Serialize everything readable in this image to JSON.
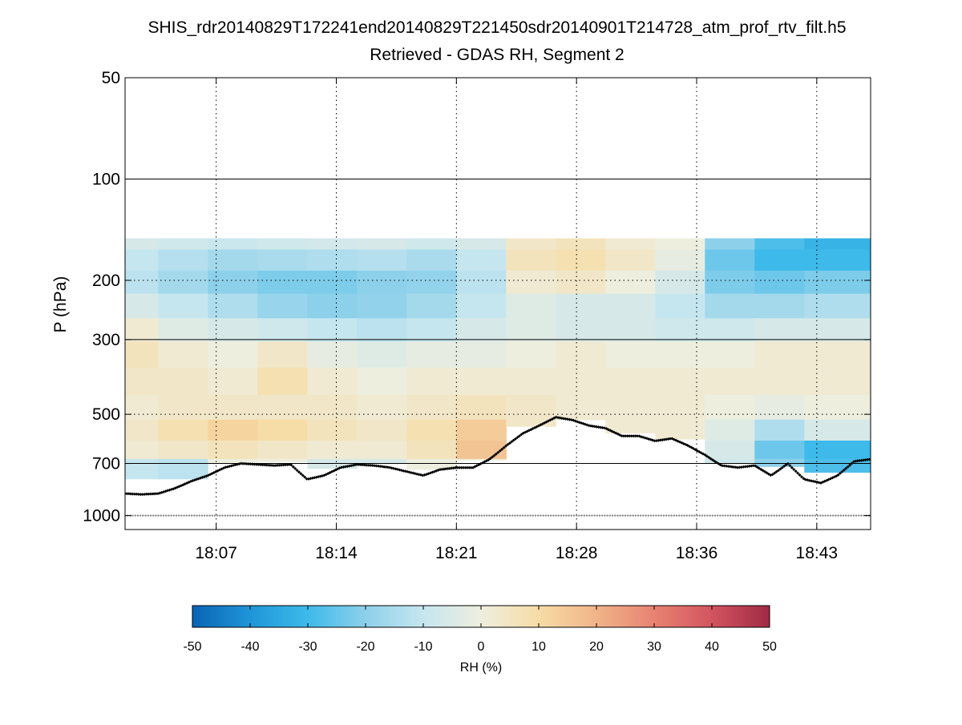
{
  "chart_data": {
    "type": "heatmap",
    "title": "SHIS_rdr20140829T172241end20140829T221450sdr20140901T214728_atm_prof_rtv_filt.h5",
    "subtitle": "Retrieved - GDAS RH, Segment 2",
    "xlabel": "",
    "ylabel": "P (hPa)",
    "y_scale": "log",
    "y_reversed": true,
    "ylim": [
      50,
      1100
    ],
    "y_major_ticks": [
      50,
      100,
      200,
      300,
      500,
      700,
      1000
    ],
    "y_minor_ticks": [
      200,
      500
    ],
    "xlim": [
      "18:01:30",
      "18:46:30"
    ],
    "x_tick_labels": [
      "18:07",
      "18:14",
      "18:21",
      "18:28",
      "18:36",
      "18:43"
    ],
    "x_tick_times": [
      "18:07:00",
      "18:14:15",
      "18:21:30",
      "18:28:45",
      "18:36:00",
      "18:43:15"
    ],
    "grid": "dotted vertical at x ticks; solid horizontal at 100, 300, 700 hPa; dotted horizontal at 200, 500 hPa",
    "colorbar": {
      "label": "RH (%)",
      "range": [
        -50,
        50
      ],
      "ticks": [
        -50,
        -40,
        -30,
        -20,
        -10,
        0,
        10,
        20,
        30,
        40,
        50
      ],
      "colormap": [
        "#0a64b4",
        "#1f95d8",
        "#3dbaea",
        "#8dd0ea",
        "#c6e6ef",
        "#eeeede",
        "#f6dca6",
        "#f0b488",
        "#e88272",
        "#d25460",
        "#a02a44"
      ],
      "orientation": "horizontal",
      "placement": "bottom"
    },
    "field": {
      "description_units": "RH difference (%), time x pressure",
      "top_pressure_hPa": 150,
      "pressure_rows_hPa": [
        150,
        175,
        200,
        240,
        280,
        330,
        400,
        480,
        560,
        640,
        720
      ],
      "time_columns": [
        "18:02",
        "18:05",
        "18:08",
        "18:11",
        "18:14",
        "18:17",
        "18:20",
        "18:23",
        "18:26",
        "18:29",
        "18:32",
        "18:35",
        "18:38",
        "18:41",
        "18:44"
      ],
      "values": [
        [
          -6,
          -8,
          -9,
          -8,
          -7,
          -6,
          -8,
          -6,
          4,
          6,
          2,
          0,
          -20,
          -28,
          -32
        ],
        [
          -10,
          -13,
          -16,
          -15,
          -14,
          -13,
          -15,
          -10,
          6,
          8,
          4,
          -2,
          -24,
          -30,
          -30
        ],
        [
          -12,
          -16,
          -20,
          -22,
          -22,
          -20,
          -19,
          -12,
          2,
          4,
          0,
          -6,
          -22,
          -24,
          -22
        ],
        [
          -6,
          -10,
          -14,
          -18,
          -20,
          -19,
          -16,
          -10,
          -4,
          -6,
          -6,
          -10,
          -16,
          -16,
          -14
        ],
        [
          2,
          -4,
          -6,
          -8,
          -10,
          -12,
          -10,
          -6,
          -4,
          -6,
          -6,
          -8,
          -8,
          -6,
          -6
        ],
        [
          6,
          2,
          0,
          4,
          -2,
          -4,
          -2,
          -2,
          0,
          2,
          0,
          0,
          0,
          2,
          2
        ],
        [
          4,
          4,
          2,
          8,
          2,
          0,
          2,
          2,
          2,
          2,
          2,
          2,
          2,
          2,
          2
        ],
        [
          2,
          4,
          4,
          4,
          4,
          2,
          4,
          6,
          4,
          2,
          2,
          2,
          0,
          -2,
          0
        ],
        [
          4,
          8,
          12,
          10,
          6,
          4,
          8,
          14,
          4,
          2,
          2,
          2,
          -4,
          -14,
          -6
        ],
        [
          2,
          4,
          6,
          4,
          2,
          2,
          6,
          16,
          4,
          2,
          2,
          2,
          -6,
          -24,
          -30
        ],
        [
          -10,
          -12,
          0,
          0,
          -6,
          -6,
          0,
          0,
          0,
          0,
          0,
          0,
          -8,
          -20,
          -28
        ]
      ]
    },
    "surface_pressure_line_hPa": 1000,
    "surface_pressure_marker_color": "#888888",
    "cloud_top_markers_hPa": {
      "times": [
        "18:01:30",
        "18:02:30",
        "18:03:30",
        "18:04:30",
        "18:05:30",
        "18:06:30",
        "18:07:30",
        "18:08:30",
        "18:09:30",
        "18:10:30",
        "18:11:30",
        "18:12:30",
        "18:13:30",
        "18:14:30",
        "18:15:30",
        "18:16:30",
        "18:17:30",
        "18:18:30",
        "18:19:30",
        "18:20:30",
        "18:21:30",
        "18:22:30",
        "18:23:30",
        "18:24:30",
        "18:25:30",
        "18:26:30",
        "18:27:30",
        "18:28:30",
        "18:29:30",
        "18:30:30",
        "18:31:30",
        "18:32:30",
        "18:33:30",
        "18:34:30",
        "18:35:30",
        "18:36:30",
        "18:37:30",
        "18:38:30",
        "18:39:30",
        "18:40:30",
        "18:41:30",
        "18:42:30",
        "18:43:30",
        "18:44:30",
        "18:45:30",
        "18:46:30"
      ],
      "pressures": [
        860,
        865,
        860,
        830,
        790,
        760,
        720,
        700,
        705,
        710,
        705,
        780,
        760,
        720,
        705,
        710,
        720,
        740,
        760,
        730,
        720,
        720,
        680,
        620,
        570,
        540,
        510,
        520,
        540,
        550,
        580,
        580,
        600,
        590,
        620,
        660,
        710,
        720,
        710,
        760,
        700,
        780,
        800,
        760,
        690,
        680
      ],
      "color": "#000000"
    },
    "colors": {
      "background": "#ffffff",
      "axis": "#000000",
      "grid": "#000000"
    }
  }
}
